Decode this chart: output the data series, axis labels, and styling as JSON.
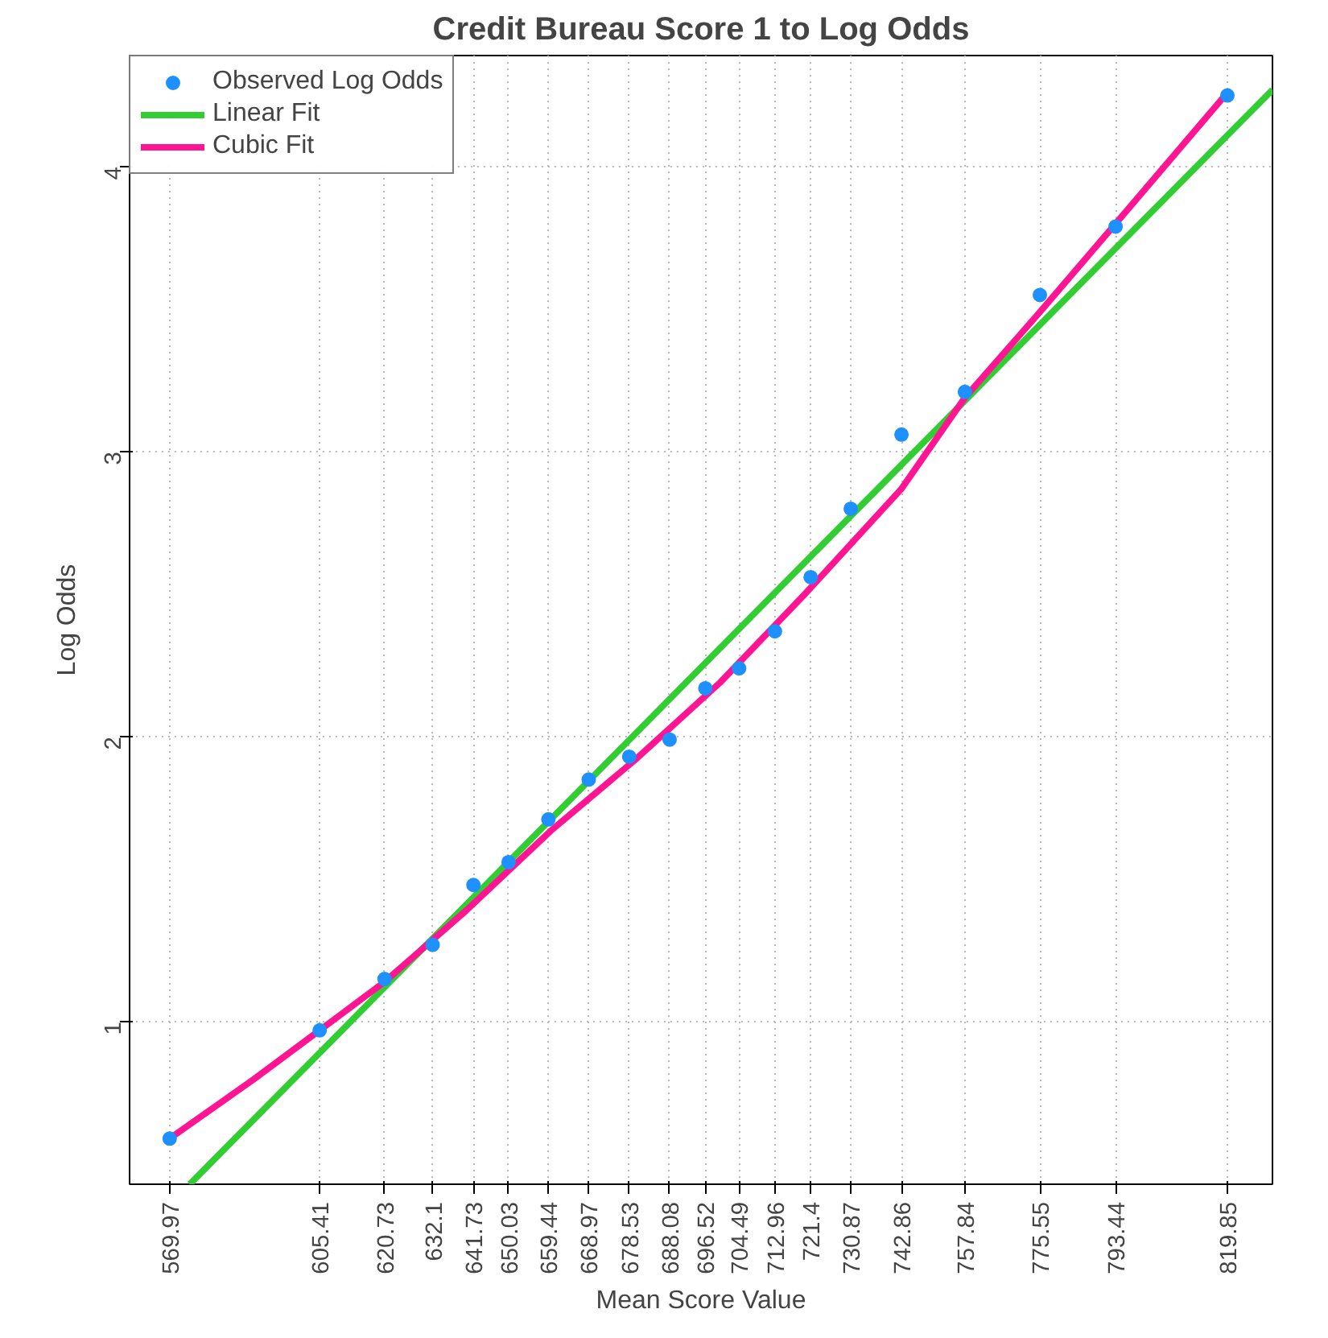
{
  "chart_data": {
    "type": "scatter",
    "title": "Credit Bureau Score 1 to Log Odds",
    "xlabel": "Mean Score Value",
    "ylabel": "Log Odds",
    "xlim": [
      560.5,
      830.5
    ],
    "ylim": [
      0.43,
      4.39
    ],
    "xticks": [
      569.97,
      605.41,
      620.73,
      632.1,
      641.73,
      650.03,
      659.44,
      668.97,
      678.53,
      688.08,
      696.52,
      704.49,
      712.96,
      721.4,
      730.87,
      742.86,
      757.84,
      775.55,
      793.44,
      819.85
    ],
    "yticks": [
      1,
      2,
      3,
      4
    ],
    "grid": true,
    "legend": "top left",
    "series": [
      {
        "name": "Observed Log Odds",
        "marker": "circle",
        "color": "#1e90ff",
        "x": [
          569.97,
          605.41,
          620.73,
          632.1,
          641.73,
          650.03,
          659.44,
          668.97,
          678.53,
          688.08,
          696.52,
          704.49,
          712.96,
          721.4,
          730.87,
          742.86,
          757.84,
          775.55,
          793.44,
          819.85
        ],
        "values": [
          0.59,
          0.97,
          1.15,
          1.27,
          1.48,
          1.56,
          1.71,
          1.85,
          1.93,
          1.99,
          2.17,
          2.24,
          2.37,
          2.56,
          2.8,
          3.06,
          3.21,
          3.55,
          3.79,
          4.25
        ]
      },
      {
        "name": "Linear Fit",
        "type": "line",
        "color": "#32cd32",
        "x": [
          574.7,
          830.5
        ],
        "values": [
          0.43,
          4.27
        ]
      },
      {
        "name": "Cubic Fit",
        "type": "line",
        "color": "#ff1493",
        "x": [
          569.97,
          590,
          605.41,
          620.73,
          640,
          660,
          680,
          700,
          720,
          742.86,
          757.84,
          775.55,
          793.44,
          819.85
        ],
        "values": [
          0.59,
          0.8,
          0.97,
          1.14,
          1.39,
          1.67,
          1.92,
          2.19,
          2.5,
          2.87,
          3.19,
          3.49,
          3.8,
          4.26
        ]
      }
    ]
  }
}
